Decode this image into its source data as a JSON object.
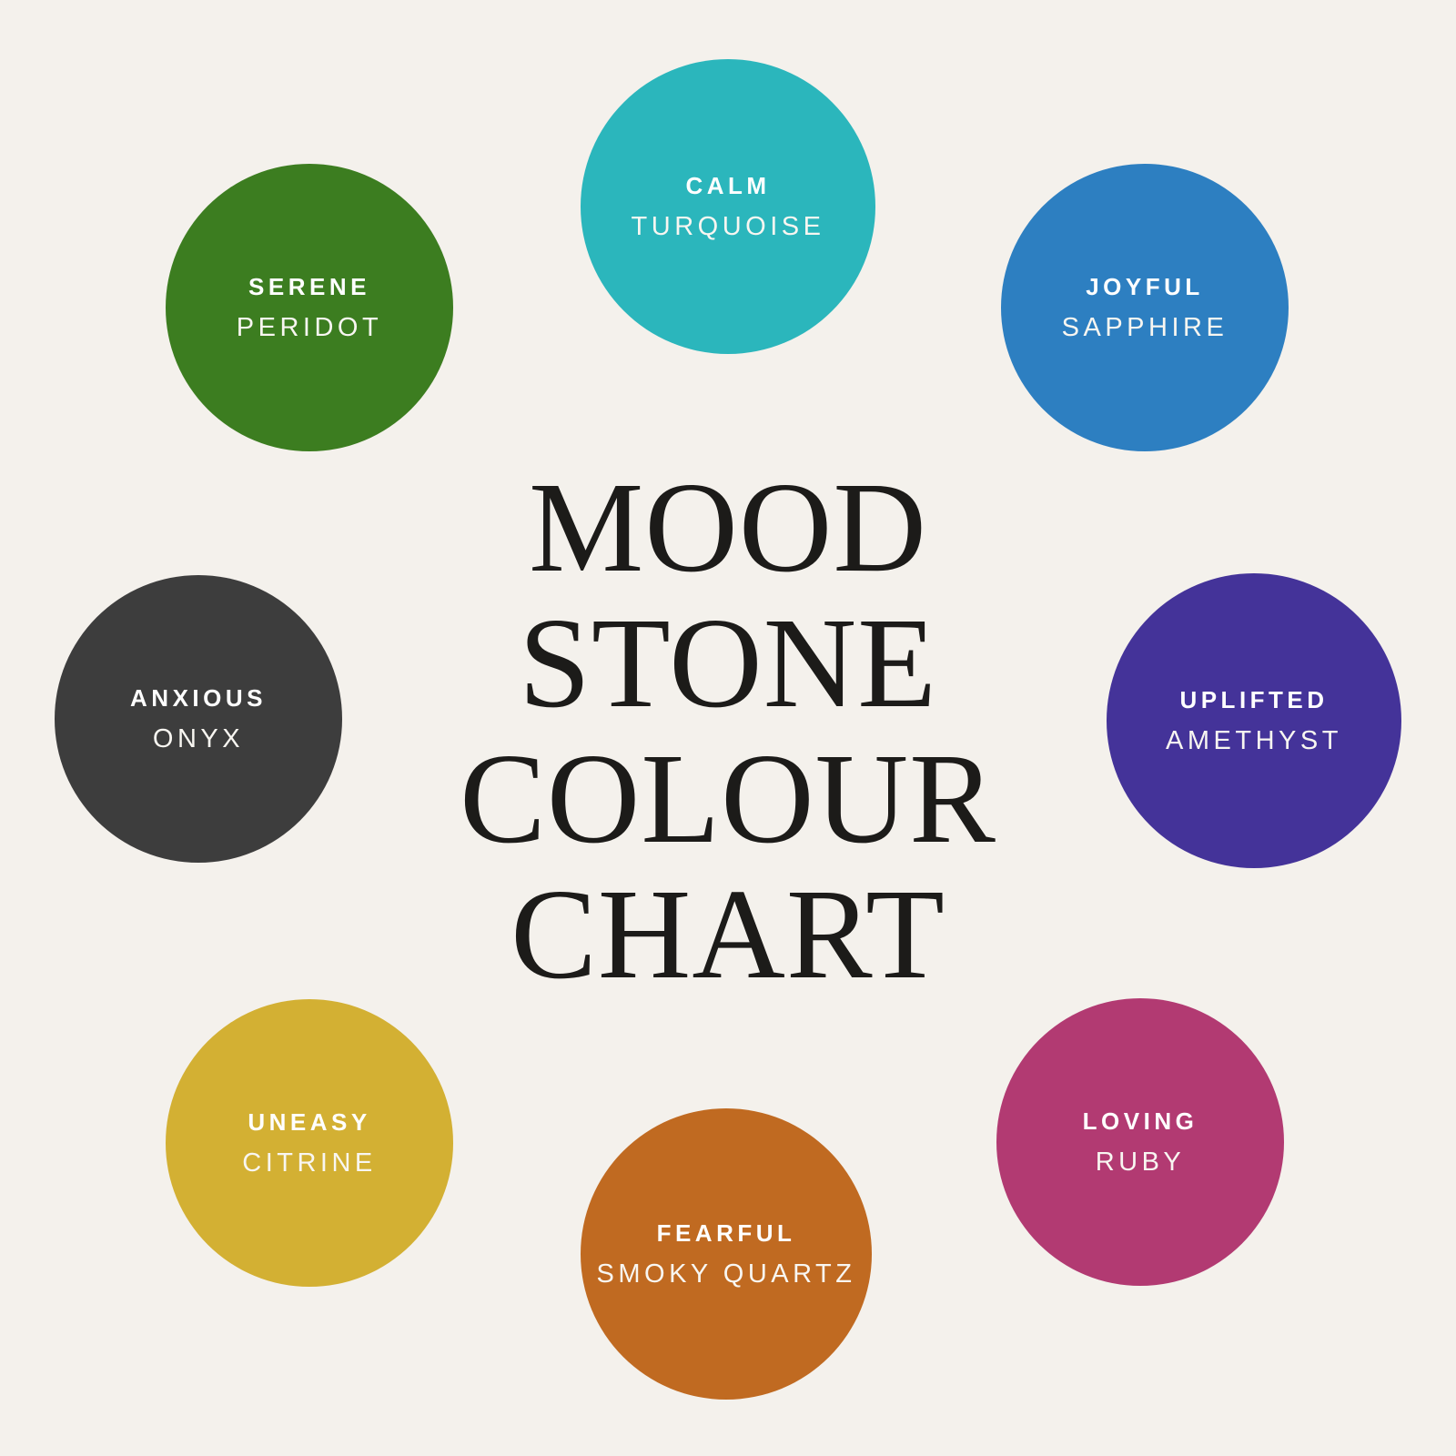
{
  "background": "#f4f1ec",
  "title": {
    "lines": [
      "MOOD",
      "STONE",
      "COLOUR",
      "CHART"
    ],
    "color": "#1c1b19"
  },
  "label_text_color": "#ffffff",
  "stones": [
    {
      "id": "calm",
      "mood": "CALM",
      "stone": "TURQUOISE",
      "color": "#2bb6bc"
    },
    {
      "id": "joyful",
      "mood": "JOYFUL",
      "stone": "SAPPHIRE",
      "color": "#2d7fc1"
    },
    {
      "id": "uplifted",
      "mood": "UPLIFTED",
      "stone": "AMETHYST",
      "color": "#443399"
    },
    {
      "id": "loving",
      "mood": "LOVING",
      "stone": "RUBY",
      "color": "#b23a72"
    },
    {
      "id": "fearful",
      "mood": "FEARFUL",
      "stone": "SMOKY QUARTZ",
      "color": "#c06a21"
    },
    {
      "id": "uneasy",
      "mood": "UNEASY",
      "stone": "CITRINE",
      "color": "#d3b033"
    },
    {
      "id": "anxious",
      "mood": "ANXIOUS",
      "stone": "ONYX",
      "color": "#3d3d3d"
    },
    {
      "id": "serene",
      "mood": "SERENE",
      "stone": "PERIDOT",
      "color": "#3c7d20"
    }
  ]
}
